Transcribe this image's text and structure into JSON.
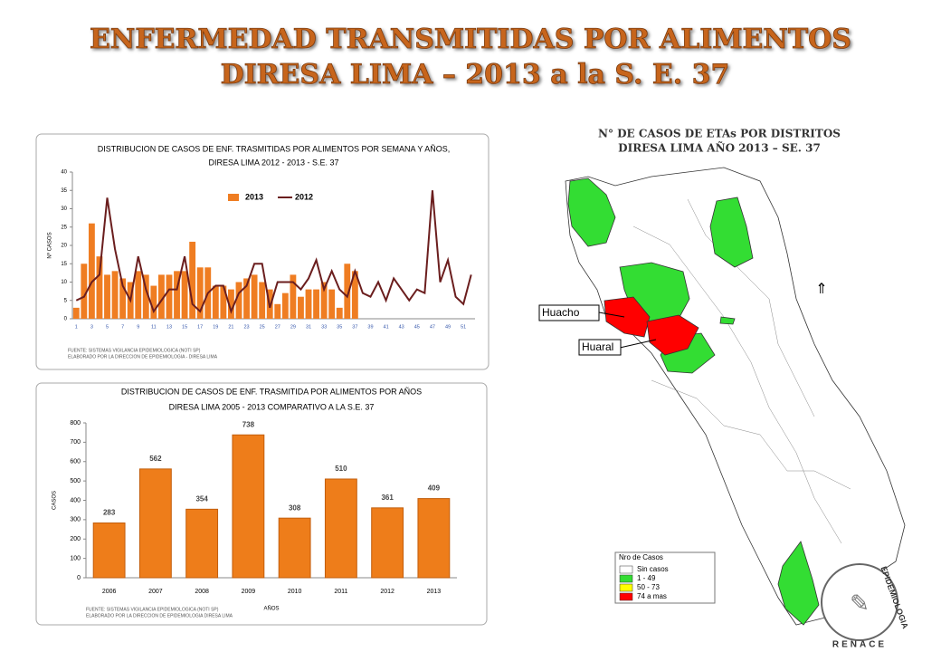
{
  "header": {
    "title_line1": "ENFERMEDAD  TRANSMITIDAS  POR ALIMENTOS",
    "title_line2": "DIRESA LIMA – 2013 a la  S. E. 37"
  },
  "chart_data": [
    {
      "type": "bar_line",
      "title_line1": "DISTRIBUCION DE CASOS DE ENF. TRASMITIDAS POR ALIMENTOS POR SEMANA Y AÑOS,",
      "title_line2": "DIRESA LIMA  2012 - 2013 - S.E.  37",
      "y_label": "Nº CASOS",
      "source_line1": "FUENTE: SISTEMAS VIGILANCIA EPIDEMIOLOGICA (NOTI SP)",
      "source_line2": "ELABORADO POR LA DIRECCION DE EPIDEMIOLOGIA - DIRESA  LIMA",
      "categories": [
        "1",
        null,
        "3",
        null,
        "5",
        null,
        "7",
        null,
        "9",
        null,
        "11",
        null,
        "13",
        null,
        "15",
        null,
        "17",
        null,
        "19",
        null,
        "21",
        null,
        "23",
        null,
        "25",
        null,
        "27",
        null,
        "29",
        null,
        "31",
        null,
        "33",
        null,
        "35",
        null,
        "37",
        null,
        "39",
        null,
        "41",
        null,
        "43",
        null,
        "45",
        null,
        "47",
        null,
        "49",
        null,
        "51",
        null
      ],
      "ylim": [
        0,
        40
      ],
      "yticks": [
        0,
        5,
        10,
        15,
        20,
        25,
        30,
        35,
        40
      ],
      "series": [
        {
          "name": "2013",
          "kind": "bar",
          "color": "#ef7d22",
          "values": [
            3,
            15,
            26,
            17,
            12,
            13,
            11,
            10,
            13,
            12,
            9,
            12,
            12,
            13,
            13,
            21,
            14,
            14,
            9,
            9,
            8,
            10,
            11,
            12,
            10,
            8,
            4,
            7,
            12,
            6,
            8,
            8,
            10,
            8,
            3,
            15,
            13,
            null,
            null,
            null,
            null,
            null,
            null,
            null,
            null,
            null,
            null,
            null,
            null,
            null,
            null,
            null
          ]
        },
        {
          "name": "2012",
          "kind": "line",
          "color": "#6b1e1e",
          "values": [
            5,
            6,
            10,
            12,
            33,
            19,
            9,
            5,
            17,
            8,
            2,
            5,
            8,
            8,
            17,
            4,
            2,
            7,
            9,
            9,
            2,
            7,
            9,
            15,
            15,
            3,
            10,
            10,
            10,
            8,
            11,
            16,
            8,
            13,
            8,
            6,
            13,
            7,
            6,
            10,
            5,
            11,
            8,
            5,
            8,
            7,
            35,
            10,
            16,
            6,
            4,
            12
          ]
        }
      ]
    },
    {
      "type": "bar",
      "title_line1": "DISTRIBUCION DE CASOS DE ENF. TRASMITIDA POR ALIMENTOS POR AÑOS",
      "title_line2": "DIRESA LIMA  2005 - 2013 COMPARATIVO  A LA S.E.  37",
      "x_label": "AÑOS",
      "y_label": "CASOS",
      "source_line1": "FUENTE: SISTEMAS VIGILANCIA EPIDEMIOLOGICA (NOTI SP)",
      "source_line2": "ELABORADO POR LA DIRECCION DE EPIDEMIOLOGIA  DIRESA LIMA",
      "categories": [
        "2006",
        "2007",
        "2008",
        "2009",
        "2010",
        "2011",
        "2012",
        "2013"
      ],
      "values": [
        283,
        562,
        354,
        738,
        308,
        510,
        361,
        409
      ],
      "color": "#ee7d1a",
      "ylim": [
        0,
        800
      ],
      "yticks": [
        0,
        100,
        200,
        300,
        400,
        500,
        600,
        700,
        800
      ]
    }
  ],
  "map": {
    "title_line1": "N° DE CASOS DE ETAs POR DISTRITOS",
    "title_line2": "DIRESA LIMA AÑO 2013 – SE. 37",
    "labels": [
      "Huacho",
      "Huaral"
    ],
    "legend_title": "Nro de Casos",
    "legend": [
      {
        "label": "Sin casos",
        "color": "#ffffff"
      },
      {
        "label": "1 - 49",
        "color": "#33dd33"
      },
      {
        "label": "50 - 73",
        "color": "#ffff00"
      },
      {
        "label": "74 a mas",
        "color": "#ff0000"
      }
    ],
    "logo_top": "EPIDEMIOLOGIA",
    "logo_bottom": "RENACE"
  }
}
